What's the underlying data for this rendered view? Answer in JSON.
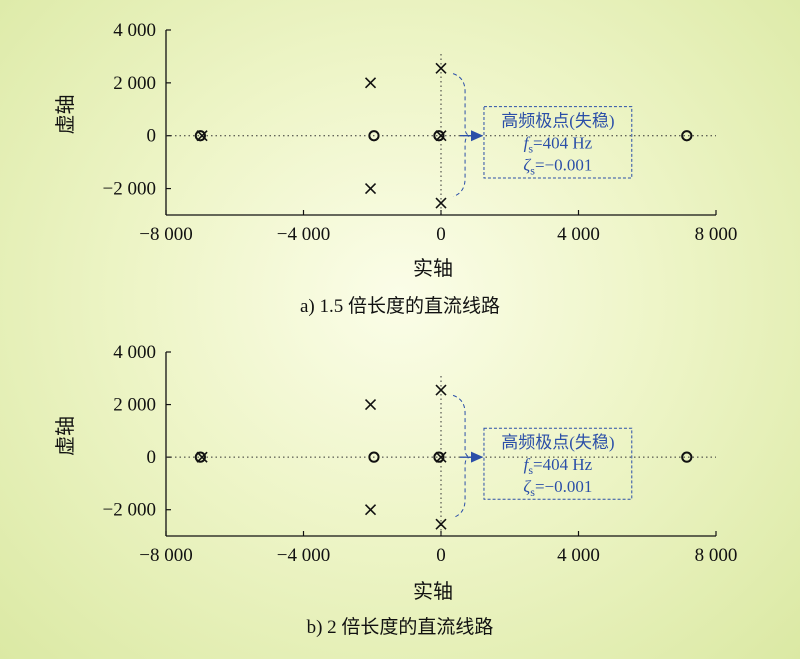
{
  "chart_data": [
    {
      "type": "scatter",
      "caption": "a) 1.5 倍长度的直流线路",
      "xlabel": "实轴",
      "ylabel": "虚轴",
      "xlim": [
        -8000,
        8000
      ],
      "ylim": [
        -3000,
        4000
      ],
      "xticks": [
        -8000,
        -4000,
        0,
        4000,
        8000
      ],
      "yticks": [
        -2000,
        0,
        2000,
        4000
      ],
      "xtick_labels": [
        "−8 000",
        "−4 000",
        "0",
        "4 000",
        "8 000"
      ],
      "ytick_labels": [
        "−2 000",
        "0",
        "2 000",
        "4 000"
      ],
      "grid": false,
      "series": [
        {
          "marker": "x",
          "points": [
            [
              -6950,
              0
            ],
            [
              -2050,
              2000
            ],
            [
              -2050,
              -2000
            ],
            [
              0,
              2550
            ],
            [
              0,
              -2550
            ],
            [
              0,
              0
            ]
          ]
        },
        {
          "marker": "o",
          "points": [
            [
              -7000,
              0
            ],
            [
              -1950,
              0
            ],
            [
              -60,
              0
            ],
            [
              7150,
              0
            ]
          ]
        }
      ],
      "annotation": {
        "line1": "高频极点(失稳)",
        "fs_symbol": "f",
        "fs_sub": "s",
        "fs_value": "=404 Hz",
        "zeta_symbol": "ζ",
        "zeta_sub": "s",
        "zeta_value": "=−0.001",
        "box_x": [
          1250,
          5550
        ],
        "box_y": [
          -1600,
          1100
        ],
        "arrow_from": [
          550,
          0
        ],
        "arrow_to": [
          1250,
          0
        ],
        "brace_x": 700,
        "brace_y": [
          -2300,
          2350
        ]
      },
      "colors": {
        "marker": "#111111",
        "annotation": "#2b4fa8",
        "zero_lines": "#333333"
      }
    },
    {
      "type": "scatter",
      "caption": "b) 2 倍长度的直流线路",
      "xlabel": "实轴",
      "ylabel": "虚轴",
      "xlim": [
        -8000,
        8000
      ],
      "ylim": [
        -3000,
        4000
      ],
      "xticks": [
        -8000,
        -4000,
        0,
        4000,
        8000
      ],
      "yticks": [
        -2000,
        0,
        2000,
        4000
      ],
      "xtick_labels": [
        "−8 000",
        "−4 000",
        "0",
        "4 000",
        "8 000"
      ],
      "ytick_labels": [
        "−2 000",
        "0",
        "2 000",
        "4 000"
      ],
      "grid": false,
      "series": [
        {
          "marker": "x",
          "points": [
            [
              -6950,
              0
            ],
            [
              -2050,
              2000
            ],
            [
              -2050,
              -2000
            ],
            [
              0,
              2550
            ],
            [
              0,
              -2550
            ],
            [
              0,
              0
            ]
          ]
        },
        {
          "marker": "o",
          "points": [
            [
              -7000,
              0
            ],
            [
              -1950,
              0
            ],
            [
              -60,
              0
            ],
            [
              7150,
              0
            ]
          ]
        }
      ],
      "annotation": {
        "line1": "高频极点(失稳)",
        "fs_symbol": "f",
        "fs_sub": "s",
        "fs_value": "=404 Hz",
        "zeta_symbol": "ζ",
        "zeta_sub": "s",
        "zeta_value": "=−0.001",
        "box_x": [
          1250,
          5550
        ],
        "box_y": [
          -1600,
          1100
        ],
        "arrow_from": [
          550,
          0
        ],
        "arrow_to": [
          1250,
          0
        ],
        "brace_x": 700,
        "brace_y": [
          -2300,
          2350
        ]
      },
      "colors": {
        "marker": "#111111",
        "annotation": "#2b4fa8",
        "zero_lines": "#333333"
      }
    }
  ]
}
